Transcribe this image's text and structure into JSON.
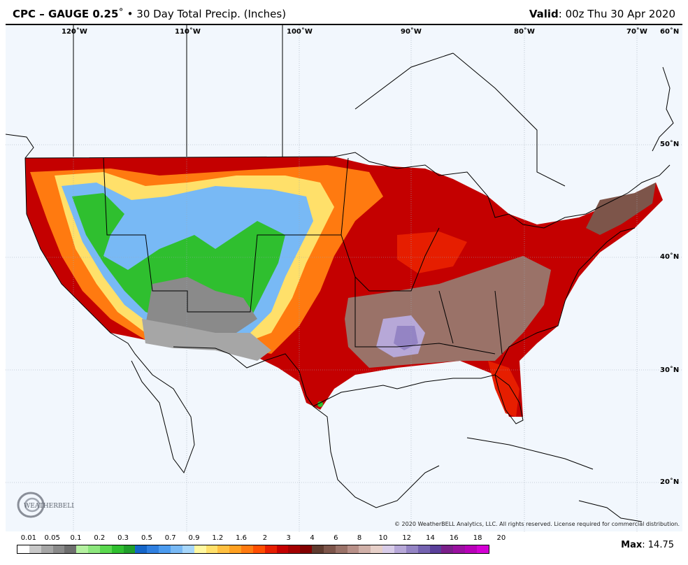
{
  "header": {
    "product_bold": "CPC – GAUGE 0.25",
    "degree": "˚",
    "bullet": " • ",
    "product_desc": "30 Day Total Precip. (Inches)",
    "valid_label": "Valid",
    "valid_value": ": 00z Thu 30 Apr 2020"
  },
  "map": {
    "lon_labels": [
      "120˚W",
      "110˚W",
      "100˚W",
      "90˚W",
      "80˚W",
      "70˚W",
      "60˚N"
    ],
    "lat_labels": [
      "50˚N",
      "40˚N",
      "30˚N",
      "20˚N"
    ],
    "copyright": "© 2020 WeatherBELL Analytics, LLC. All rights reserved. License required for commercial distribution.",
    "logo_text": "WEATHERBELL"
  },
  "legend": {
    "labels": [
      "0.01",
      "0.05",
      "0.1",
      "0.2",
      "0.3",
      "0.5",
      "0.7",
      "0.9",
      "1.2",
      "1.6",
      "2",
      "3",
      "4",
      "6",
      "8",
      "10",
      "12",
      "14",
      "16",
      "18",
      "20"
    ],
    "colors": [
      "#ffffff",
      "#c8c8c8",
      "#a6a6a6",
      "#8a8a8a",
      "#6e6e6e",
      "#b4f0a0",
      "#8ce67c",
      "#5ad84e",
      "#2fbf2f",
      "#1f9e2a",
      "#1565c8",
      "#2f7fe0",
      "#4b9bef",
      "#78b9f5",
      "#a6d6fa",
      "#fff8a0",
      "#ffe06a",
      "#ffc040",
      "#ffa020",
      "#ff7a10",
      "#ff4e00",
      "#e61e00",
      "#c40000",
      "#a30000",
      "#820000",
      "#5e3a2e",
      "#7d554a",
      "#9a7268",
      "#b89088",
      "#d0b0a8",
      "#e6cfc8",
      "#d8cce8",
      "#b7a8d8",
      "#9484c4",
      "#7462b0",
      "#5a3f9a",
      "#7a1f8a",
      "#9a10a0",
      "#b800b8",
      "#d400d4"
    ]
  },
  "max": {
    "label": "Max",
    "value": ": 14.75"
  }
}
